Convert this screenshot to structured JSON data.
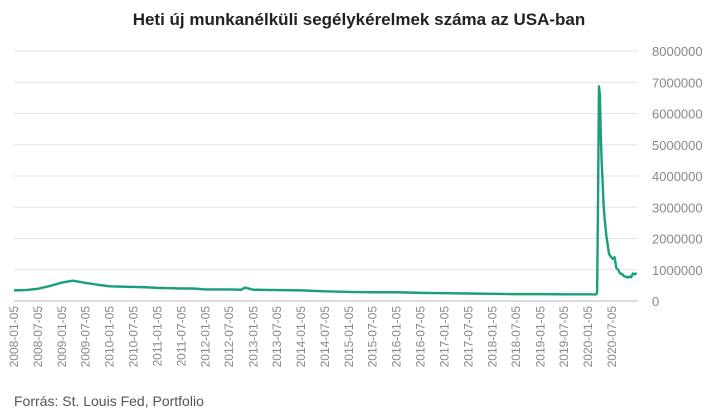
{
  "chart_data": {
    "type": "line",
    "title": "Heti új munkanélküli segélykérelmek száma az USA-ban",
    "source": "Forrás: St. Louis Fed, Portfolio",
    "xlabel": "",
    "ylabel": "",
    "ylim": [
      0,
      8000000
    ],
    "y_ticks": [
      {
        "value": 0,
        "label": "0"
      },
      {
        "value": 1000000,
        "label": "1000000"
      },
      {
        "value": 2000000,
        "label": "2000000"
      },
      {
        "value": 3000000,
        "label": "3000000"
      },
      {
        "value": 4000000,
        "label": "4000000"
      },
      {
        "value": 5000000,
        "label": "5000000"
      },
      {
        "value": 6000000,
        "label": "6000000"
      },
      {
        "value": 7000000,
        "label": "7000000"
      },
      {
        "value": 8000000,
        "label": "8000000"
      }
    ],
    "x_ticks": [
      "2008-01-05",
      "2008-07-05",
      "2009-01-05",
      "2009-07-05",
      "2010-01-05",
      "2010-07-05",
      "2011-01-05",
      "2011-07-05",
      "2012-01-05",
      "2012-07-05",
      "2013-01-05",
      "2013-07-05",
      "2014-01-05",
      "2014-07-05",
      "2015-01-05",
      "2015-07-05",
      "2016-01-05",
      "2016-07-05",
      "2017-01-05",
      "2017-07-05",
      "2018-01-05",
      "2018-07-05",
      "2019-01-05",
      "2019-07-05",
      "2020-01-05",
      "2020-07-05"
    ],
    "xlim": [
      "2008-01-05",
      "2021-01-20"
    ],
    "grid": true,
    "line_color": "#1a9e7c",
    "series": [
      {
        "x": [
          "2008-01-05",
          "2008-04-05",
          "2008-07-05",
          "2008-10-05",
          "2009-01-05",
          "2009-03-28",
          "2009-07-05",
          "2009-10-05",
          "2010-01-05",
          "2010-04-05",
          "2010-07-05",
          "2010-10-05",
          "2011-01-05",
          "2011-04-05",
          "2011-07-05",
          "2011-10-05",
          "2012-01-05",
          "2012-04-05",
          "2012-07-05",
          "2012-10-05",
          "2012-11-03",
          "2013-01-05",
          "2013-07-05",
          "2014-01-05",
          "2014-07-05",
          "2015-01-05",
          "2015-07-05",
          "2016-01-05",
          "2016-07-05",
          "2017-01-05",
          "2017-07-05",
          "2018-01-05",
          "2018-07-05",
          "2019-01-05",
          "2019-07-05",
          "2020-01-05",
          "2020-03-07",
          "2020-03-14",
          "2020-03-21",
          "2020-03-28",
          "2020-04-04",
          "2020-04-11",
          "2020-04-18",
          "2020-04-25",
          "2020-05-02",
          "2020-05-09",
          "2020-05-16",
          "2020-05-23",
          "2020-05-30",
          "2020-06-13",
          "2020-06-27",
          "2020-07-11",
          "2020-07-25",
          "2020-08-08",
          "2020-08-22",
          "2020-09-05",
          "2020-09-19",
          "2020-10-03",
          "2020-10-17",
          "2020-10-31",
          "2020-11-14",
          "2020-11-28",
          "2020-12-12",
          "2020-12-26",
          "2021-01-09"
        ],
        "values": [
          340000,
          350000,
          390000,
          480000,
          590000,
          650000,
          580000,
          520000,
          470000,
          460000,
          450000,
          440000,
          420000,
          410000,
          400000,
          400000,
          370000,
          370000,
          370000,
          360000,
          430000,
          360000,
          350000,
          340000,
          310000,
          290000,
          280000,
          280000,
          260000,
          250000,
          240000,
          230000,
          220000,
          220000,
          215000,
          215000,
          210000,
          280000,
          3300000,
          6870000,
          6600000,
          5300000,
          4400000,
          3800000,
          3100000,
          2700000,
          2400000,
          2100000,
          1900000,
          1500000,
          1420000,
          1350000,
          1400000,
          1050000,
          1000000,
          880000,
          870000,
          800000,
          780000,
          750000,
          780000,
          760000,
          880000,
          850000,
          900000
        ]
      }
    ]
  }
}
